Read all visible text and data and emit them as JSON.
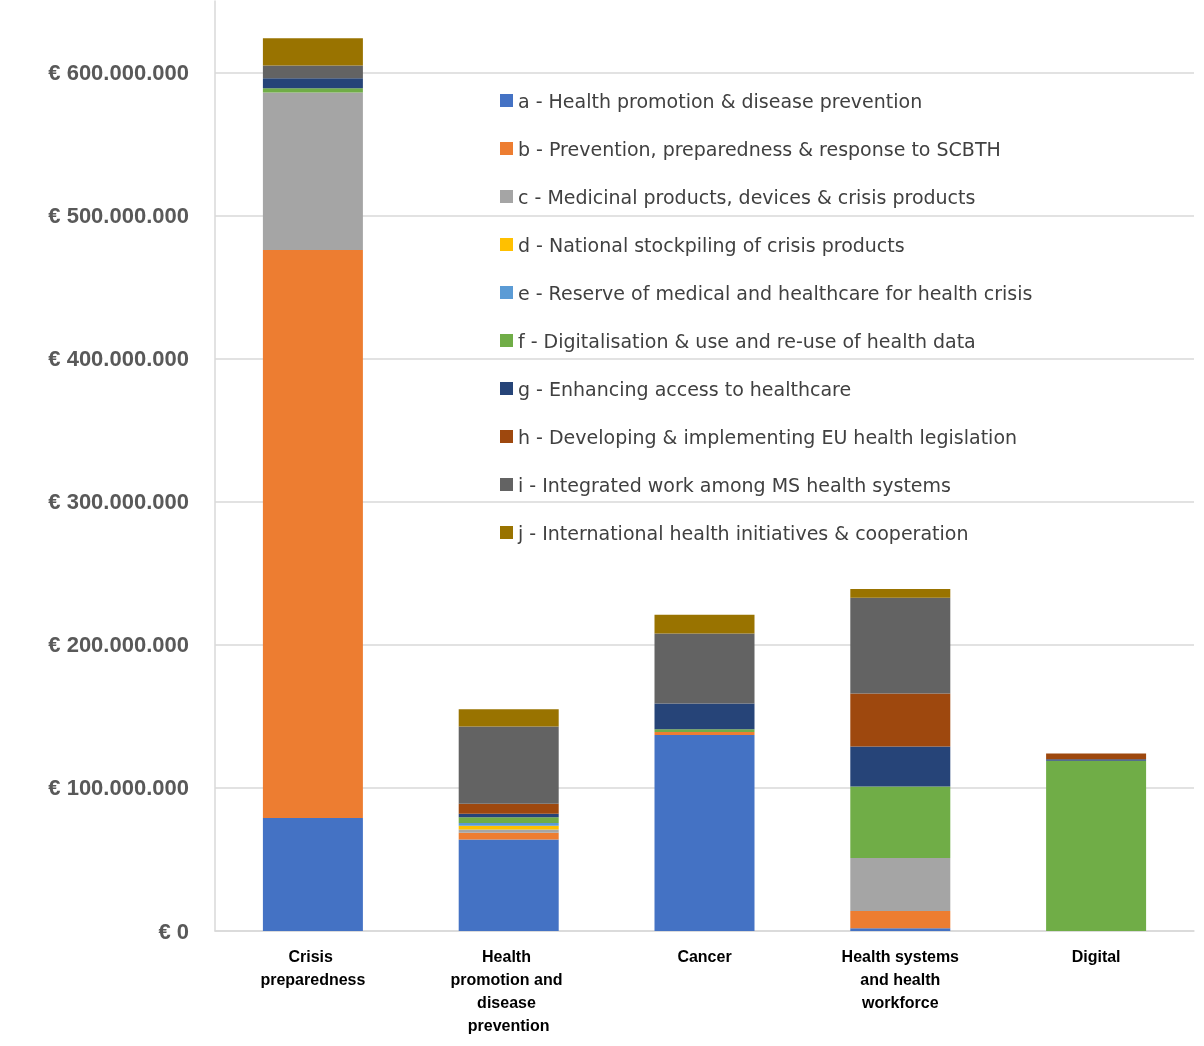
{
  "chart_data": {
    "type": "bar",
    "stacked": true,
    "categories": [
      "Crisis preparedness",
      "Health promotion and disease prevention",
      "Cancer",
      "Health systems and health workforce",
      "Digital"
    ],
    "series": [
      {
        "name": "a - Health promotion & disease prevention",
        "color": "#4472c4",
        "values": [
          79000000,
          64000000,
          137000000,
          2000000,
          null
        ]
      },
      {
        "name": "b - Prevention, preparedness & response to SCBTH",
        "color": "#ed7d31",
        "values": [
          397000000,
          4600000,
          2000000,
          12000000,
          null
        ]
      },
      {
        "name": "c - Medicinal products, devices & crisis products",
        "color": "#a5a5a5",
        "values": [
          110000000,
          2400000,
          null,
          37000000,
          null
        ]
      },
      {
        "name": "d - National stockpiling of crisis products",
        "color": "#ffc000",
        "values": [
          null,
          2500000,
          null,
          null,
          null
        ]
      },
      {
        "name": "e - Reserve of medical and healthcare for health crisis",
        "color": "#5b9bd5",
        "values": [
          null,
          2000000,
          null,
          null,
          null
        ]
      },
      {
        "name": "f - Digitalisation & use and re-use of health data",
        "color": "#70ad47",
        "values": [
          3000000,
          4000000,
          2000000,
          50000000,
          119000000
        ]
      },
      {
        "name": "g - Enhancing access to healthcare",
        "color": "#264478",
        "values": [
          7000000,
          2500000,
          18000000,
          28000000,
          1000000
        ]
      },
      {
        "name": "h - Developing & implementing EU health legislation",
        "color": "#9e480e",
        "values": [
          null,
          7000000,
          null,
          37000000,
          4000000
        ]
      },
      {
        "name": "i - Integrated work among MS health systems",
        "color": "#636363",
        "values": [
          9000000,
          54000000,
          49000000,
          67000000,
          null
        ]
      },
      {
        "name": "j - International health initiatives & cooperation",
        "color": "#997300",
        "values": [
          19000000,
          12000000,
          13000000,
          6000000,
          null
        ]
      }
    ],
    "ylim": [
      0,
      650000000
    ],
    "yticks": [
      {
        "value": 0,
        "label": "€ 0"
      },
      {
        "value": 100000000,
        "label": "€ 100.000.000"
      },
      {
        "value": 200000000,
        "label": "€ 200.000.000"
      },
      {
        "value": 300000000,
        "label": "€ 300.000.000"
      },
      {
        "value": 400000000,
        "label": "€ 400.000.000"
      },
      {
        "value": 500000000,
        "label": "€ 500.000.000"
      },
      {
        "value": 600000000,
        "label": "€ 600.000.000"
      }
    ],
    "grid": "y",
    "legend": "top right"
  }
}
